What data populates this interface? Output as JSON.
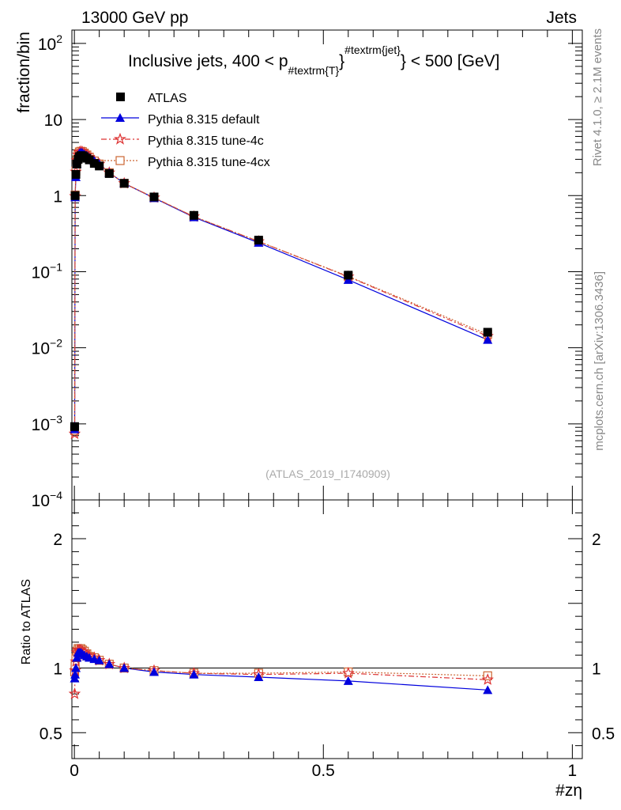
{
  "header": {
    "energy_label": "13000 GeV pp",
    "category_label": "Jets"
  },
  "side_labels": {
    "rivet": "Rivet 4.1.0, ≥ 2.1M events",
    "mcplots": "mcplots.cern.ch [arXiv:1306.3436]"
  },
  "analysis_id": "(ATLAS_2019_I1740909)",
  "colors": {
    "data": "#000000",
    "default": "#0000dd",
    "tune4c": "#dd3333",
    "tune4cx": "#cc6633"
  },
  "chart_data": [
    {
      "type": "line",
      "name": "main",
      "title_parts": {
        "pre": "Inclusive jets, 400 < p",
        "sub": "#textrm{T}",
        "sup": "#textrm{jet}",
        "post": "} < 500 [GeV]"
      },
      "ylabel": "fraction/bin",
      "yscale": "log",
      "ylim": [
        0.0001,
        150
      ],
      "xlim": [
        -0.005,
        1.02
      ],
      "y_ticks": [
        {
          "v": 100,
          "base": "10",
          "exp": "2"
        },
        {
          "v": 10,
          "base": "10",
          "exp": ""
        },
        {
          "v": 1,
          "base": "1",
          "exp": ""
        },
        {
          "v": 0.1,
          "base": "10",
          "exp": "−1"
        },
        {
          "v": 0.01,
          "base": "10",
          "exp": "−2"
        },
        {
          "v": 0.001,
          "base": "10",
          "exp": "−3"
        },
        {
          "v": 0.0001,
          "base": "10",
          "exp": "−4"
        }
      ],
      "legend": [
        "ATLAS",
        "Pythia 8.315 default",
        "Pythia 8.315 tune-4c",
        "Pythia 8.315 tune-4cx"
      ],
      "x": [
        0.0005,
        0.0015,
        0.003,
        0.005,
        0.0075,
        0.01,
        0.013,
        0.016,
        0.02,
        0.025,
        0.03,
        0.04,
        0.05,
        0.07,
        0.1,
        0.16,
        0.24,
        0.37,
        0.55,
        0.83
      ],
      "series": [
        {
          "name": "ATLAS",
          "values": [
            0.00092,
            1.0,
            1.9,
            2.6,
            3.0,
            3.25,
            3.35,
            3.35,
            3.25,
            3.1,
            2.95,
            2.65,
            2.45,
            1.95,
            1.45,
            0.96,
            0.55,
            0.26,
            0.09,
            0.016
          ]
        },
        {
          "name": "Pythia 8.315 default",
          "values": [
            0.00085,
            0.95,
            1.75,
            2.6,
            3.3,
            3.6,
            3.7,
            3.65,
            3.5,
            3.35,
            3.15,
            2.85,
            2.6,
            2.0,
            1.45,
            0.93,
            0.52,
            0.24,
            0.078,
            0.0127
          ]
        },
        {
          "name": "Pythia 8.315 tune-4c",
          "values": [
            0.00074,
            0.98,
            2.05,
            2.9,
            3.45,
            3.72,
            3.8,
            3.75,
            3.6,
            3.4,
            3.2,
            2.85,
            2.6,
            2.0,
            1.45,
            0.94,
            0.53,
            0.25,
            0.086,
            0.0142
          ]
        },
        {
          "name": "Pythia 8.315 tune-4cx",
          "values": [
            0.00082,
            1.02,
            2.1,
            2.95,
            3.5,
            3.75,
            3.82,
            3.78,
            3.62,
            3.42,
            3.2,
            2.85,
            2.6,
            2.0,
            1.45,
            0.94,
            0.53,
            0.25,
            0.087,
            0.015
          ]
        }
      ]
    },
    {
      "type": "line",
      "name": "ratio",
      "ylabel": "Ratio to ATLAS",
      "xlabel": "#zη",
      "ylim": [
        0.3,
        2.3
      ],
      "xlim": [
        -0.005,
        1.02
      ],
      "y_ticks": [
        {
          "v": 0.5,
          "label": "0.5"
        },
        {
          "v": 1,
          "label": "1"
        },
        {
          "v": 2,
          "label": "2"
        }
      ],
      "x_ticks": [
        {
          "v": 0,
          "label": "0"
        },
        {
          "v": 0.5,
          "label": "0.5"
        },
        {
          "v": 1,
          "label": "1"
        }
      ],
      "x": [
        0.0005,
        0.0015,
        0.003,
        0.005,
        0.0075,
        0.01,
        0.013,
        0.016,
        0.02,
        0.025,
        0.03,
        0.04,
        0.05,
        0.07,
        0.1,
        0.16,
        0.24,
        0.37,
        0.55,
        0.83
      ],
      "series": [
        {
          "name": "Pythia 8.315 default",
          "values": [
            0.92,
            0.95,
            1.0,
            1.08,
            1.12,
            1.12,
            1.12,
            1.11,
            1.1,
            1.09,
            1.08,
            1.07,
            1.06,
            1.03,
            1.0,
            0.97,
            0.95,
            0.93,
            0.9,
            0.83
          ]
        },
        {
          "name": "Pythia 8.315 tune-4c",
          "values": [
            0.8,
            0.98,
            1.05,
            1.12,
            1.14,
            1.14,
            1.14,
            1.13,
            1.12,
            1.1,
            1.09,
            1.08,
            1.06,
            1.03,
            1.0,
            0.98,
            0.96,
            0.95,
            0.96,
            0.91
          ]
        },
        {
          "name": "Pythia 8.315 tune-4cx",
          "values": [
            0.97,
            1.02,
            1.08,
            1.13,
            1.15,
            1.15,
            1.15,
            1.14,
            1.13,
            1.11,
            1.09,
            1.08,
            1.06,
            1.03,
            1.0,
            0.98,
            0.96,
            0.96,
            0.97,
            0.94
          ]
        }
      ]
    }
  ]
}
